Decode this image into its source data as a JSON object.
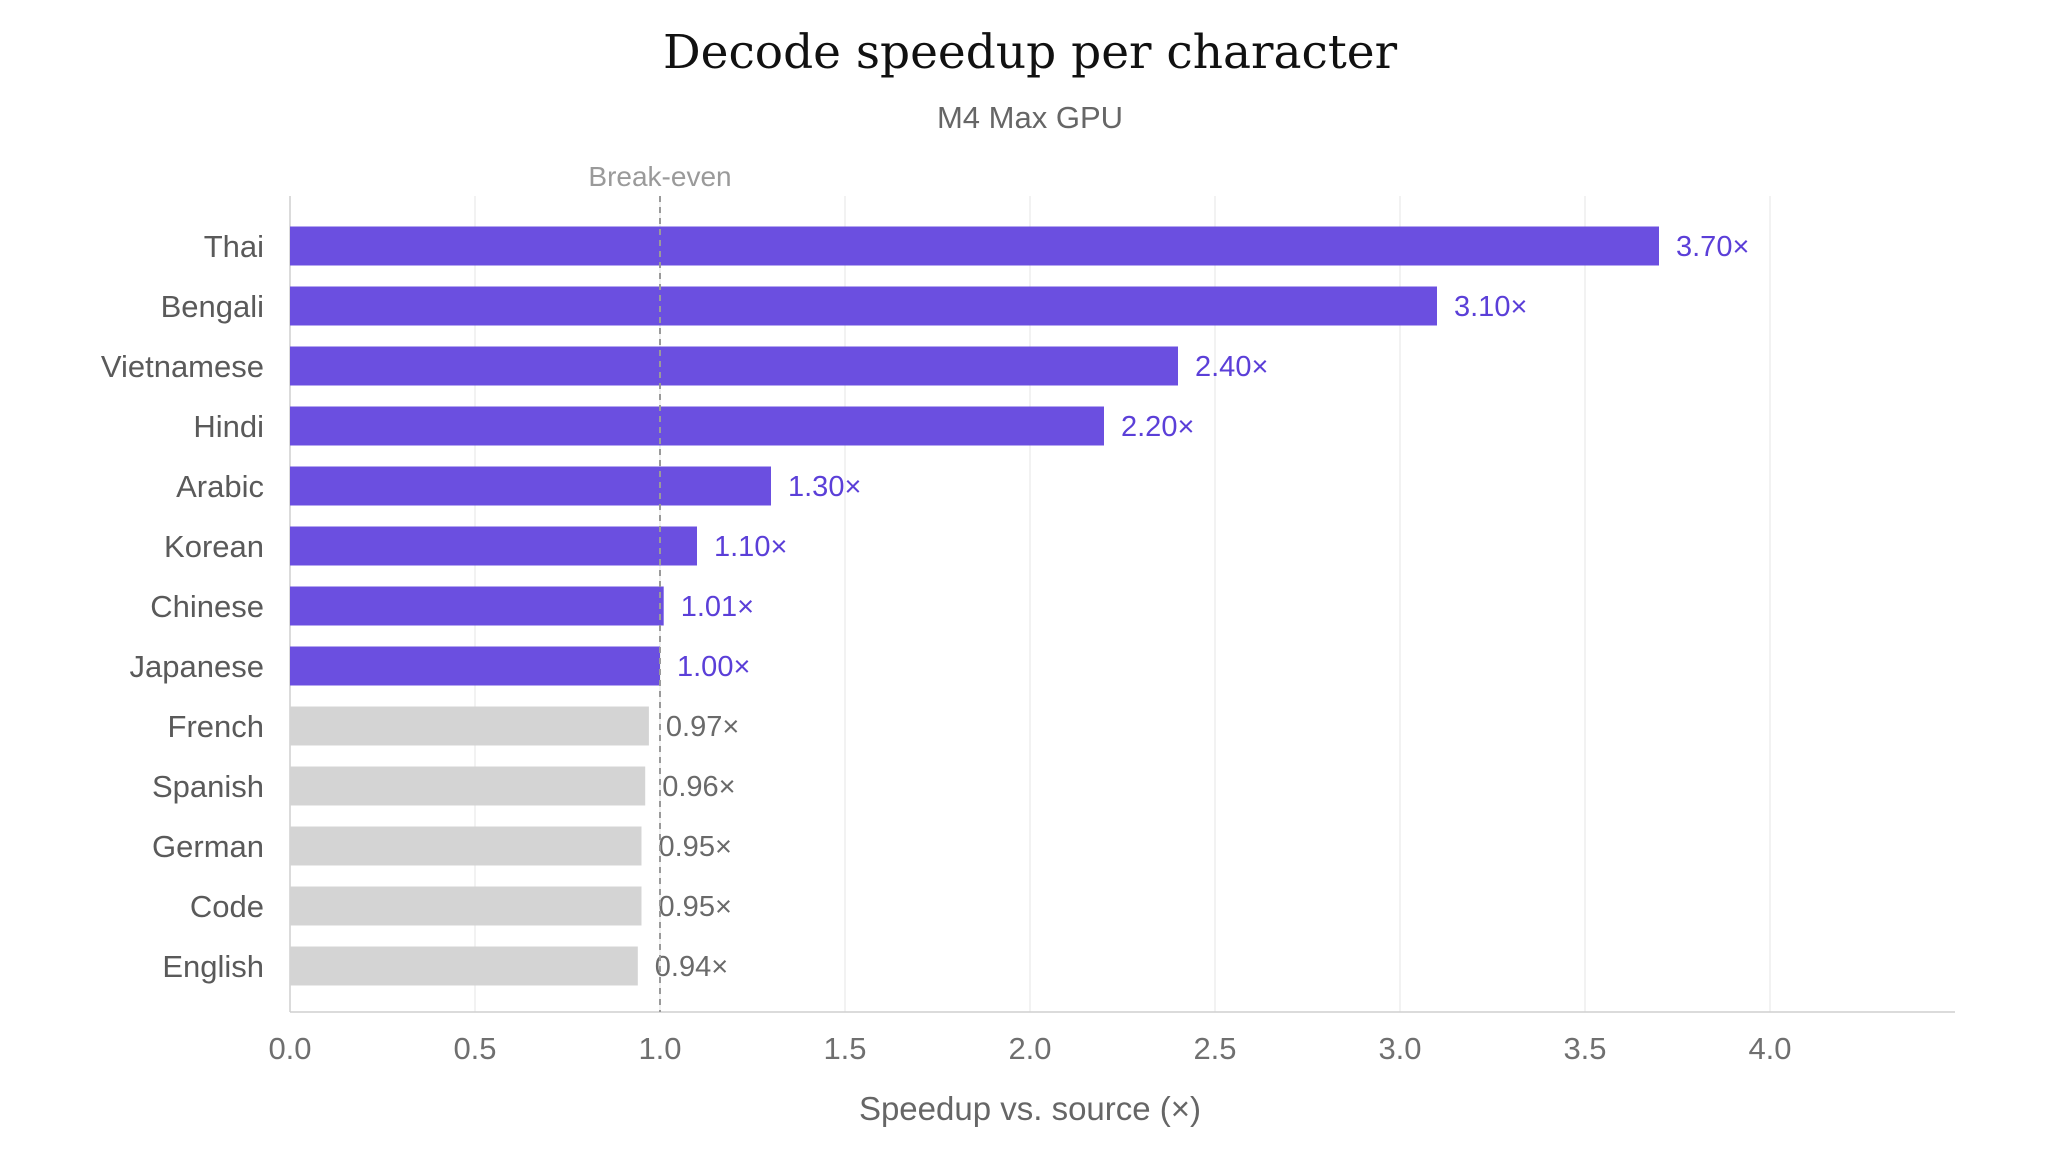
{
  "chart_data": {
    "type": "bar",
    "orientation": "horizontal",
    "title": "Decode speedup per character",
    "subtitle": "M4 Max GPU",
    "xlabel": "Speedup vs. source (×)",
    "xlim": [
      0,
      4.5
    ],
    "xticks": [
      "0.0",
      "0.5",
      "1.0",
      "1.5",
      "2.0",
      "2.5",
      "3.0",
      "3.5",
      "4.0"
    ],
    "grid": "vertical",
    "reference_line": {
      "value": 1.0,
      "label": "Break-even"
    },
    "categories": [
      "Thai",
      "Bengali",
      "Vietnamese",
      "Hindi",
      "Arabic",
      "Korean",
      "Chinese",
      "Japanese",
      "French",
      "Spanish",
      "German",
      "Code",
      "English"
    ],
    "values": [
      3.7,
      3.1,
      2.4,
      2.2,
      1.3,
      1.1,
      1.01,
      1.0,
      0.97,
      0.96,
      0.95,
      0.95,
      0.94
    ],
    "value_labels": [
      "3.70×",
      "3.10×",
      "2.40×",
      "2.20×",
      "1.30×",
      "1.10×",
      "1.01×",
      "1.00×",
      "0.97×",
      "0.96×",
      "0.95×",
      "0.95×",
      "0.94×"
    ],
    "colors": {
      "speedup": "#6b4fe0",
      "slowdown": "#d4d4d4",
      "speedup_label": "#5b3fd8",
      "slowdown_label": "#6a6a6a"
    }
  }
}
